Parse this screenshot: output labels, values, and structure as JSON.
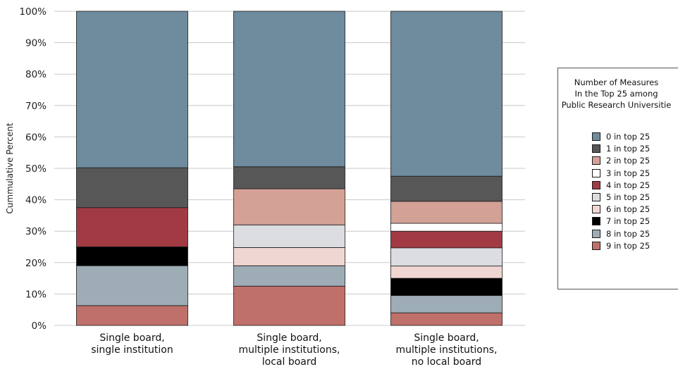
{
  "chart_data": {
    "type": "bar",
    "stacked": true,
    "ylabel": "Cummulative Percent",
    "ylim": [
      0,
      100
    ],
    "yticks": [
      "0%",
      "10%",
      "20%",
      "30%",
      "40%",
      "50%",
      "60%",
      "70%",
      "80%",
      "90%",
      "100%"
    ],
    "grid": true,
    "categories": [
      [
        "Single board,",
        "single institution"
      ],
      [
        "Single board,",
        "multiple institutions,",
        "local board"
      ],
      [
        "Single board,",
        "multiple institutions,",
        "no local board"
      ]
    ],
    "legend": {
      "title": "Number of Measures\nIn the Top 25 among\nPublic Research Universitie",
      "placement": "right"
    },
    "series": [
      {
        "name": "9 in top 25",
        "color": "#c0706a",
        "values": [
          6.3,
          12.5,
          4.0
        ]
      },
      {
        "name": "8 in top 25",
        "color": "#9eacb6",
        "values": [
          12.7,
          6.5,
          5.5
        ]
      },
      {
        "name": "7 in top 25",
        "color": "#000000",
        "values": [
          6.0,
          0.0,
          5.5
        ]
      },
      {
        "name": "6 in top 25",
        "color": "#f0d6d2",
        "values": [
          0.0,
          5.8,
          3.9
        ]
      },
      {
        "name": "5 in top 25",
        "color": "#dcdde0",
        "values": [
          0.0,
          7.2,
          5.8
        ]
      },
      {
        "name": "4 in top 25",
        "color": "#a23a44",
        "values": [
          12.5,
          0.0,
          5.3
        ]
      },
      {
        "name": "3 in top 25",
        "color": "#ffffff",
        "values": [
          0.0,
          0.0,
          2.5
        ]
      },
      {
        "name": "2 in top 25",
        "color": "#d4a197",
        "values": [
          0.0,
          11.5,
          7.0
        ]
      },
      {
        "name": "1 in top 25",
        "color": "#575757",
        "values": [
          12.7,
          7.0,
          8.0
        ]
      },
      {
        "name": "0 in top 25",
        "color": "#6f8b9e",
        "values": [
          49.8,
          49.5,
          52.5
        ]
      }
    ],
    "legend_order": [
      "0 in top 25",
      "1 in top 25",
      "2 in top 25",
      "3 in top 25",
      "4 in top 25",
      "5 in top 25",
      "6 in top 25",
      "7 in top 25",
      "8 in top 25",
      "9 in top 25"
    ]
  }
}
